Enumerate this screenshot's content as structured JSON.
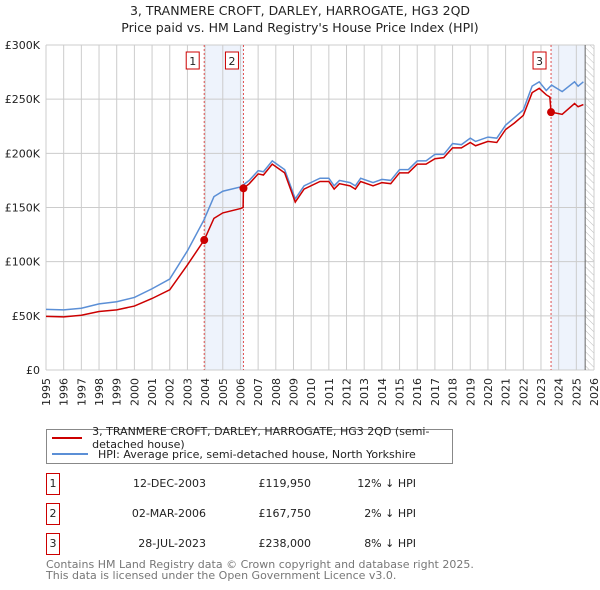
{
  "title": "3, TRANMERE CROFT, DARLEY, HARROGATE, HG3 2QD",
  "subtitle": "Price paid vs. HM Land Registry's House Price Index (HPI)",
  "chart_data": {
    "type": "line",
    "title": "3, TRANMERE CROFT, DARLEY, HARROGATE, HG3 2QD",
    "xlim": [
      1995,
      2026
    ],
    "ylim": [
      0,
      300000
    ],
    "y_ticks": [
      0,
      50000,
      100000,
      150000,
      200000,
      250000,
      300000
    ],
    "y_tick_labels": [
      "£0",
      "£50K",
      "£100K",
      "£150K",
      "£200K",
      "£250K",
      "£300K"
    ],
    "x_tick_labels": [
      "1995",
      "1996",
      "1997",
      "1998",
      "1999",
      "2000",
      "2001",
      "2002",
      "2003",
      "2004",
      "2005",
      "2006",
      "2007",
      "2008",
      "2009",
      "2010",
      "2011",
      "2012",
      "2013",
      "2014",
      "2015",
      "2016",
      "2017",
      "2018",
      "2019",
      "2020",
      "2021",
      "2022",
      "2023",
      "2024",
      "2025",
      "2026"
    ],
    "grid": true,
    "colors": {
      "property": "#cc0000",
      "hpi": "#5b8fd6",
      "shade": "#eef3fc"
    },
    "shaded_ranges": [
      [
        2003.95,
        2006.17
      ],
      [
        2023.57,
        2025.5
      ]
    ],
    "hatched_from": 2025.5,
    "series": [
      {
        "name": "3, TRANMERE CROFT, DARLEY, HARROGATE, HG3 2QD (semi-detached house)",
        "points": [
          [
            1995,
            49500
          ],
          [
            1996,
            49000
          ],
          [
            1997,
            50500
          ],
          [
            1998,
            54000
          ],
          [
            1999,
            55500
          ],
          [
            2000,
            59000
          ],
          [
            2001,
            66000
          ],
          [
            2002,
            74000
          ],
          [
            2003,
            97000
          ],
          [
            2003.95,
            119950
          ],
          [
            2004.5,
            140000
          ],
          [
            2005,
            145000
          ],
          [
            2006,
            149000
          ],
          [
            2006.15,
            150000
          ],
          [
            2006.17,
            167750
          ],
          [
            2006.5,
            172000
          ],
          [
            2007,
            181000
          ],
          [
            2007.3,
            180000
          ],
          [
            2007.8,
            190000
          ],
          [
            2008.5,
            182000
          ],
          [
            2009.1,
            155000
          ],
          [
            2009.6,
            167000
          ],
          [
            2010.5,
            174000
          ],
          [
            2011,
            174000
          ],
          [
            2011.3,
            167000
          ],
          [
            2011.6,
            172000
          ],
          [
            2012.2,
            170000
          ],
          [
            2012.5,
            167000
          ],
          [
            2012.8,
            174000
          ],
          [
            2013.5,
            170000
          ],
          [
            2014,
            173000
          ],
          [
            2014.5,
            172000
          ],
          [
            2015,
            182000
          ],
          [
            2015.5,
            182000
          ],
          [
            2016,
            190000
          ],
          [
            2016.5,
            190000
          ],
          [
            2017,
            195000
          ],
          [
            2017.5,
            196000
          ],
          [
            2018,
            205000
          ],
          [
            2018.5,
            205000
          ],
          [
            2019,
            210000
          ],
          [
            2019.3,
            207000
          ],
          [
            2020,
            211000
          ],
          [
            2020.5,
            210000
          ],
          [
            2021,
            222000
          ],
          [
            2021.5,
            228000
          ],
          [
            2022,
            235000
          ],
          [
            2022.5,
            256000
          ],
          [
            2022.9,
            260000
          ],
          [
            2023.3,
            254000
          ],
          [
            2023.5,
            252000
          ],
          [
            2023.57,
            238000
          ],
          [
            2024.2,
            236000
          ],
          [
            2024.9,
            246000
          ],
          [
            2025.1,
            243000
          ],
          [
            2025.4,
            245000
          ]
        ]
      },
      {
        "name": "HPI: Average price, semi-detached house, North Yorkshire",
        "points": [
          [
            1995,
            56000
          ],
          [
            1996,
            55500
          ],
          [
            1997,
            57000
          ],
          [
            1998,
            61000
          ],
          [
            1999,
            63000
          ],
          [
            2000,
            67000
          ],
          [
            2001,
            75000
          ],
          [
            2002,
            84000
          ],
          [
            2003,
            110000
          ],
          [
            2003.95,
            139000
          ],
          [
            2004.5,
            160000
          ],
          [
            2005,
            165000
          ],
          [
            2006,
            169000
          ],
          [
            2006.5,
            175000
          ],
          [
            2007,
            184000
          ],
          [
            2007.3,
            183000
          ],
          [
            2007.8,
            193000
          ],
          [
            2008.5,
            185000
          ],
          [
            2009.1,
            158000
          ],
          [
            2009.6,
            170000
          ],
          [
            2010.5,
            177000
          ],
          [
            2011,
            177000
          ],
          [
            2011.3,
            170000
          ],
          [
            2011.6,
            175000
          ],
          [
            2012.2,
            173000
          ],
          [
            2012.5,
            170000
          ],
          [
            2012.8,
            177000
          ],
          [
            2013.5,
            173000
          ],
          [
            2014,
            176000
          ],
          [
            2014.5,
            175000
          ],
          [
            2015,
            185000
          ],
          [
            2015.5,
            185000
          ],
          [
            2016,
            193000
          ],
          [
            2016.5,
            193000
          ],
          [
            2017,
            199000
          ],
          [
            2017.5,
            199000
          ],
          [
            2018,
            209000
          ],
          [
            2018.5,
            208000
          ],
          [
            2019,
            214000
          ],
          [
            2019.3,
            211000
          ],
          [
            2020,
            215000
          ],
          [
            2020.5,
            214000
          ],
          [
            2021,
            226000
          ],
          [
            2021.5,
            233000
          ],
          [
            2022,
            240000
          ],
          [
            2022.5,
            262000
          ],
          [
            2022.9,
            266000
          ],
          [
            2023.3,
            258000
          ],
          [
            2023.6,
            263000
          ],
          [
            2024.2,
            257000
          ],
          [
            2024.9,
            266000
          ],
          [
            2025.1,
            262000
          ],
          [
            2025.4,
            266000
          ]
        ]
      }
    ],
    "sales": [
      {
        "label": "1",
        "x": 2003.95,
        "price": 119950,
        "date": "12-DEC-2003",
        "price_text": "£119,950",
        "hpi_text": "12% ↓ HPI"
      },
      {
        "label": "2",
        "x": 2006.17,
        "price": 167750,
        "date": "02-MAR-2006",
        "price_text": "£167,750",
        "hpi_text": "2% ↓ HPI"
      },
      {
        "label": "3",
        "x": 2023.57,
        "price": 238000,
        "date": "28-JUL-2023",
        "price_text": "£238,000",
        "hpi_text": "8% ↓ HPI"
      }
    ]
  },
  "legend": {
    "property": "3, TRANMERE CROFT, DARLEY, HARROGATE, HG3 2QD (semi-detached house)",
    "hpi": "HPI: Average price, semi-detached house, North Yorkshire"
  },
  "footer": {
    "line1": "Contains HM Land Registry data © Crown copyright and database right 2025.",
    "line2": "This data is licensed under the Open Government Licence v3.0."
  }
}
